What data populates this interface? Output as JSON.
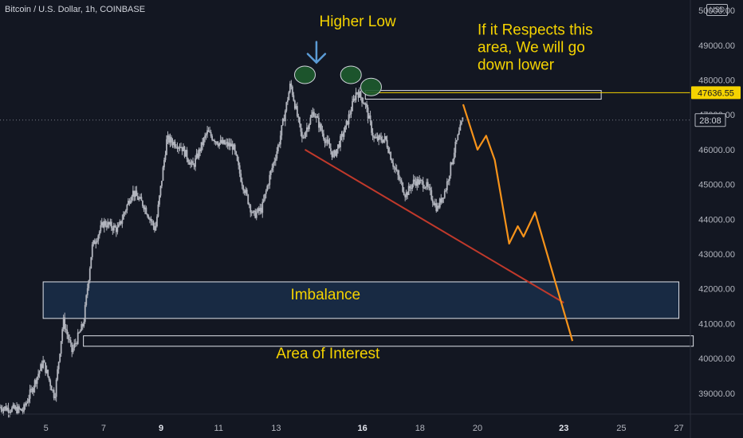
{
  "header": {
    "symbol_title": "Bitcoin / U.S. Dollar, 1h, COINBASE",
    "currency_badge": "USD"
  },
  "colors": {
    "background": "#131722",
    "candles": "#b2b5be",
    "annotation_text": "#f5d300",
    "projection_path": "#f7931a",
    "trendline": "#c0392b",
    "ellipse_fill": "#1e5b2e",
    "box_border": "#e0e3eb",
    "price_line": "#f5d300",
    "arrow": "#5b9bd5"
  },
  "price_badges": {
    "marked_level": "47636.55",
    "countdown": "28:08"
  },
  "chart_data": {
    "type": "candlestick",
    "symbol": "Bitcoin / U.S. Dollar",
    "interval": "1h",
    "exchange": "COINBASE",
    "y_axis": {
      "range": [
        38400,
        50300
      ],
      "ticks": [
        "50000.00",
        "49000.00",
        "48000.00",
        "47000.00",
        "46000.00",
        "45000.00",
        "44000.00",
        "43000.00",
        "42000.00",
        "41000.00",
        "40000.00",
        "39000.00"
      ],
      "tick_values": [
        50000,
        49000,
        48000,
        47000,
        46000,
        45000,
        44000,
        43000,
        42000,
        41000,
        40000,
        39000
      ]
    },
    "x_axis": {
      "range": [
        3.4,
        27.4
      ],
      "ticks": [
        "5",
        "7",
        "9",
        "11",
        "13",
        "16",
        "18",
        "20",
        "23",
        "25",
        "27"
      ],
      "tick_values": [
        5,
        7,
        9,
        11,
        13,
        16,
        18,
        20,
        23,
        25,
        27
      ],
      "bold_ticks": [
        "9",
        "16",
        "23"
      ]
    },
    "price_path": [
      [
        3.4,
        38600
      ],
      [
        4.2,
        38500
      ],
      [
        4.9,
        39900
      ],
      [
        5.3,
        38900
      ],
      [
        5.6,
        41100
      ],
      [
        5.9,
        40200
      ],
      [
        6.3,
        41000
      ],
      [
        6.6,
        43200
      ],
      [
        7.0,
        43900
      ],
      [
        7.5,
        43700
      ],
      [
        8.0,
        44800
      ],
      [
        8.4,
        44400
      ],
      [
        8.8,
        43700
      ],
      [
        9.2,
        46300
      ],
      [
        9.7,
        46100
      ],
      [
        10.1,
        45500
      ],
      [
        10.6,
        46500
      ],
      [
        11.0,
        46200
      ],
      [
        11.5,
        46100
      ],
      [
        11.8,
        45100
      ],
      [
        12.2,
        44100
      ],
      [
        12.5,
        44300
      ],
      [
        12.8,
        45300
      ],
      [
        13.1,
        46200
      ],
      [
        13.5,
        47900
      ],
      [
        13.9,
        46300
      ],
      [
        14.3,
        47100
      ],
      [
        14.7,
        46300
      ],
      [
        15.0,
        45800
      ],
      [
        15.4,
        46600
      ],
      [
        15.8,
        47700
      ],
      [
        16.1,
        47300
      ],
      [
        16.4,
        46300
      ],
      [
        16.8,
        46300
      ],
      [
        17.1,
        45500
      ],
      [
        17.5,
        44700
      ],
      [
        17.8,
        45100
      ],
      [
        18.2,
        45000
      ],
      [
        18.6,
        44300
      ],
      [
        18.9,
        44900
      ],
      [
        19.2,
        46000
      ],
      [
        19.5,
        46900
      ]
    ],
    "projection_path": [
      [
        19.5,
        47300
      ],
      [
        20.0,
        46000
      ],
      [
        20.3,
        46400
      ],
      [
        20.6,
        45700
      ],
      [
        21.1,
        43300
      ],
      [
        21.4,
        43800
      ],
      [
        21.6,
        43500
      ],
      [
        22.0,
        44200
      ],
      [
        23.3,
        40500
      ]
    ],
    "trendline": [
      [
        14.0,
        46000
      ],
      [
        23.0,
        41600
      ]
    ],
    "zones": [
      {
        "label": "Imbalance",
        "x": [
          4.9,
          27.0
        ],
        "y": [
          41150,
          42200
        ]
      },
      {
        "label": "Area of Interest",
        "x": [
          6.3,
          27.5
        ],
        "y": [
          40350,
          40650
        ]
      },
      {
        "label": "",
        "x": [
          16.1,
          24.3
        ],
        "y": [
          47450,
          47700
        ]
      }
    ],
    "horizontal_level": 47636.55,
    "dotted_level": 46850,
    "highlight_points": [
      [
        14.0,
        48150
      ],
      [
        15.6,
        48150
      ],
      [
        16.3,
        47800
      ]
    ],
    "annotations": [
      {
        "text": "Higher Low",
        "x": 14.5,
        "y": 49550
      },
      {
        "text": "If it Respects this",
        "x": 20.0,
        "y": 49300
      },
      {
        "text": "area, We will go",
        "x": 20.0,
        "y": 48800
      },
      {
        "text": "down lower",
        "x": 20.0,
        "y": 48300
      },
      {
        "text": "Imbalance",
        "x": 13.5,
        "y": 41700
      },
      {
        "text": "Area of Interest",
        "x": 13.0,
        "y": 40000
      }
    ],
    "arrow_target": [
      14.4,
      48500
    ]
  }
}
